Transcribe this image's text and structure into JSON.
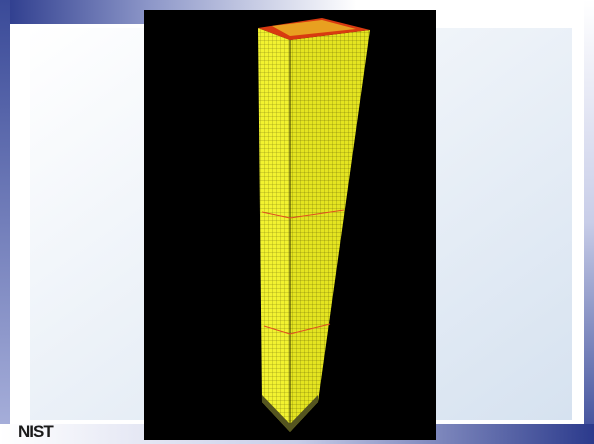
{
  "logo": "NIST"
}
